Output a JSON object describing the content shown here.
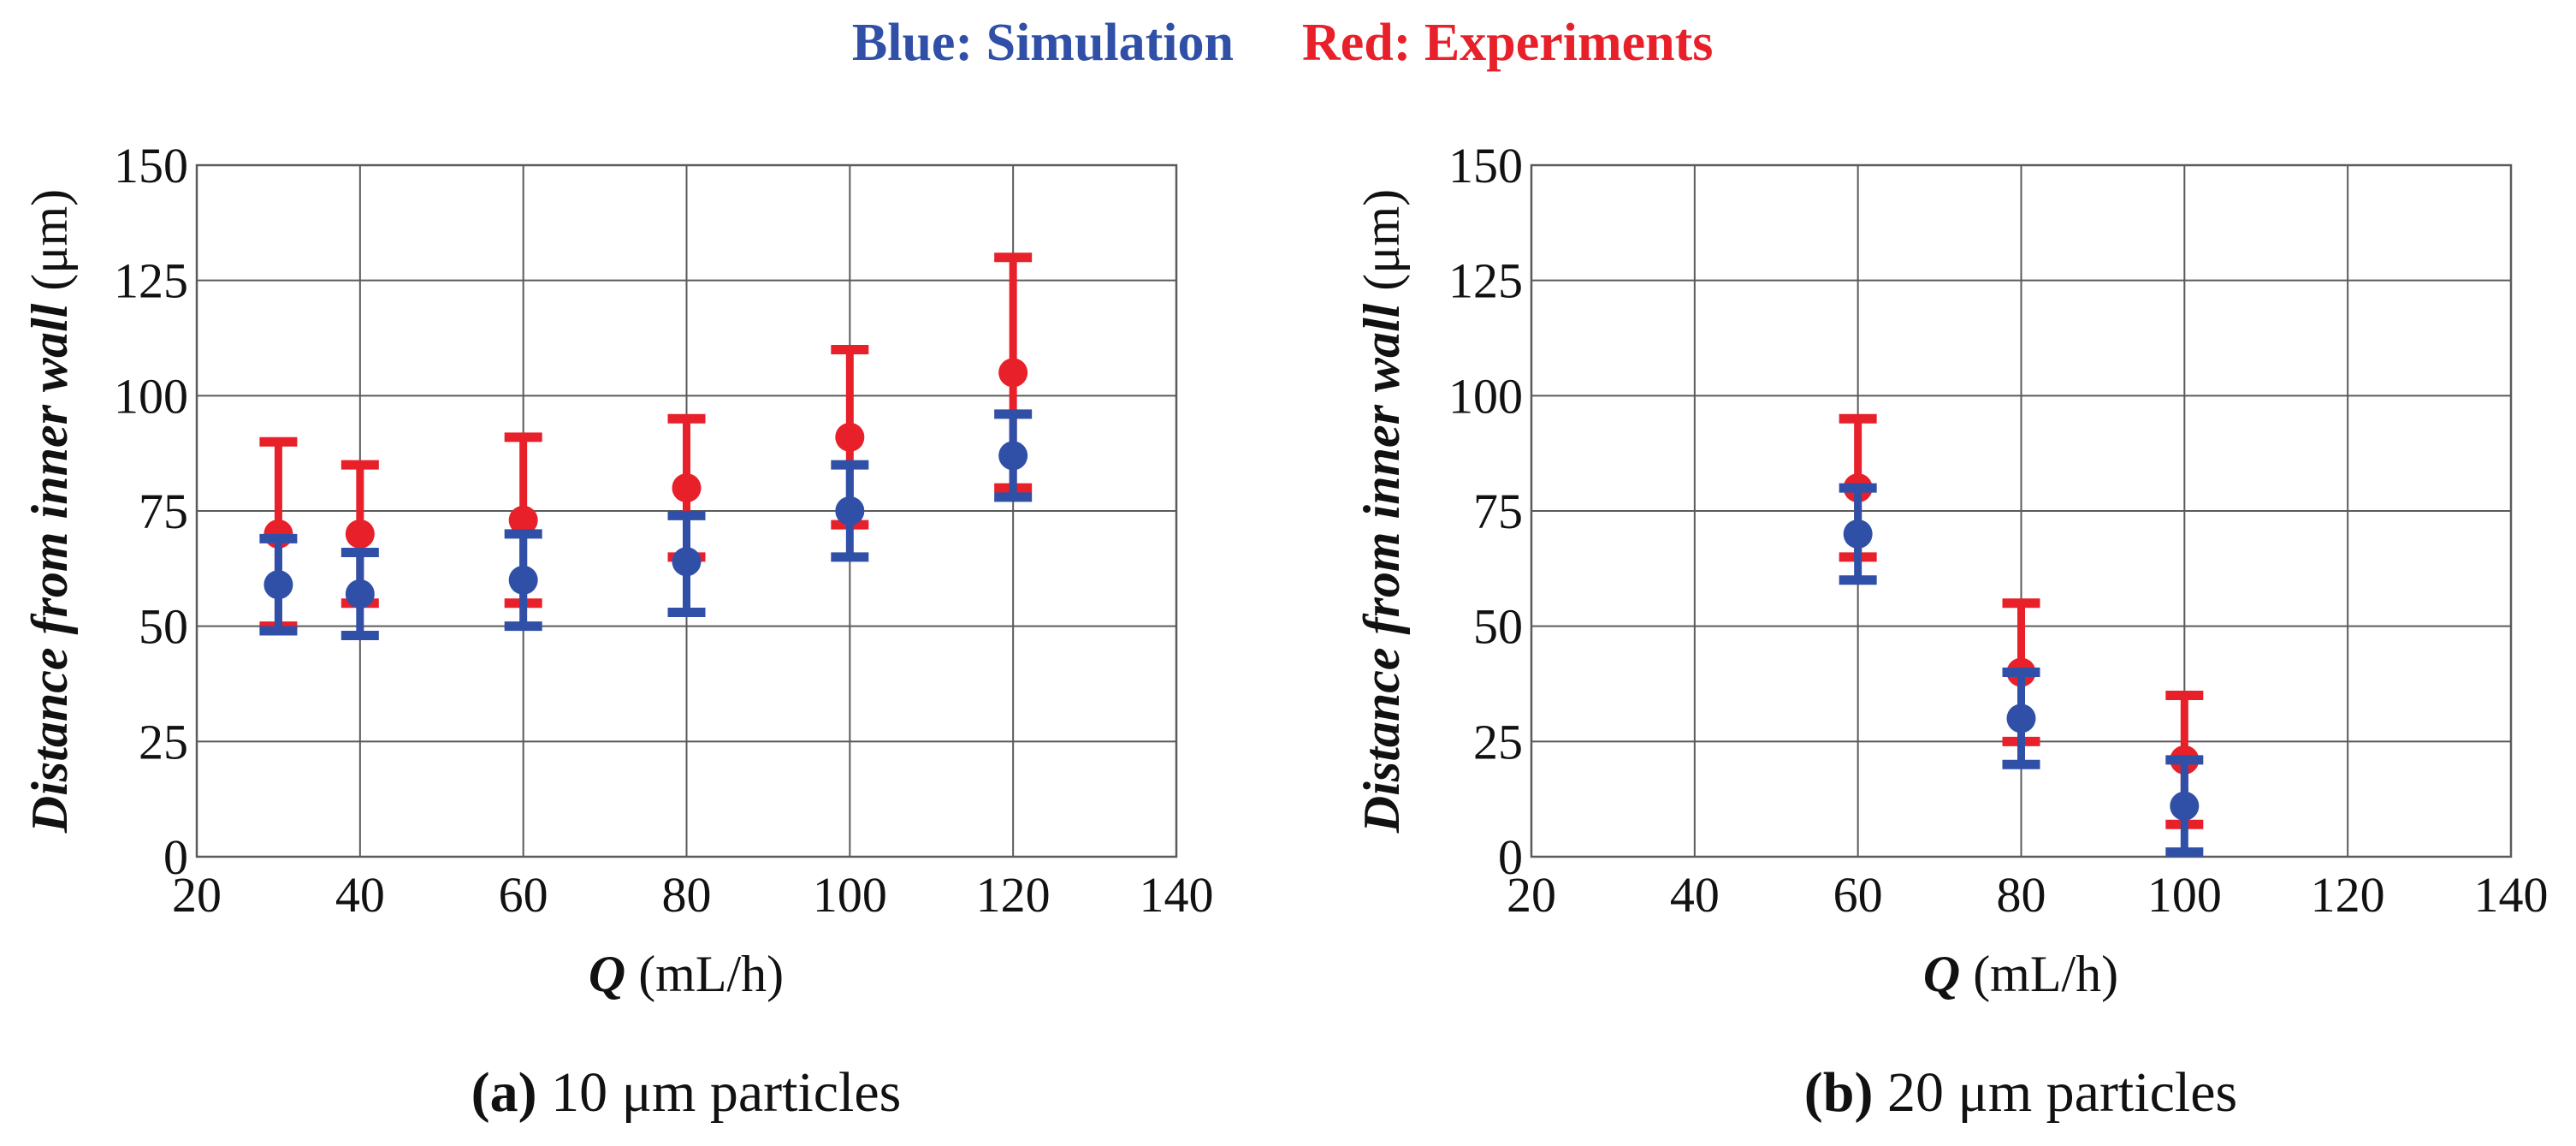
{
  "legend": {
    "simulation_label": "Blue: Simulation",
    "experiment_label": "Red: Experiments",
    "simulation_color": "#3050a8",
    "experiment_color": "#e8202a"
  },
  "chart_data": [
    {
      "type": "scatter",
      "panel_id": "a",
      "caption_prefix": "(a)",
      "caption_text": " 10 μm particles",
      "xlabel_var": "Q",
      "xlabel_unit": " (mL/h)",
      "ylabel_text": "Distance from inner wall",
      "ylabel_unit": " (μm)",
      "xlim": [
        20,
        140
      ],
      "ylim": [
        0,
        150
      ],
      "xticks": [
        20,
        40,
        60,
        80,
        100,
        120,
        140
      ],
      "yticks": [
        0,
        25,
        50,
        75,
        100,
        125,
        150
      ],
      "grid": true,
      "series": [
        {
          "name": "Experiments",
          "color": "#e8202a",
          "x": [
            30,
            40,
            60,
            80,
            100,
            120
          ],
          "y": [
            70,
            70,
            73,
            80,
            91,
            105
          ],
          "y_low": [
            50,
            55,
            55,
            65,
            72,
            80
          ],
          "y_high": [
            90,
            85,
            91,
            95,
            110,
            130
          ]
        },
        {
          "name": "Simulation",
          "color": "#3050a8",
          "x": [
            30,
            40,
            60,
            80,
            100,
            120
          ],
          "y": [
            59,
            57,
            60,
            64,
            75,
            87
          ],
          "y_low": [
            49,
            48,
            50,
            53,
            65,
            78
          ],
          "y_high": [
            69,
            66,
            70,
            74,
            85,
            96
          ]
        }
      ]
    },
    {
      "type": "scatter",
      "panel_id": "b",
      "caption_prefix": "(b)",
      "caption_text": " 20 μm particles",
      "xlabel_var": "Q",
      "xlabel_unit": " (mL/h)",
      "ylabel_text": "Distance from inner wall",
      "ylabel_unit": " (μm)",
      "xlim": [
        20,
        140
      ],
      "ylim": [
        0,
        150
      ],
      "xticks": [
        20,
        40,
        60,
        80,
        100,
        120,
        140
      ],
      "yticks": [
        0,
        25,
        50,
        75,
        100,
        125,
        150
      ],
      "grid": true,
      "series": [
        {
          "name": "Experiments",
          "color": "#e8202a",
          "x": [
            60,
            80,
            100
          ],
          "y": [
            80,
            40,
            21
          ],
          "y_low": [
            65,
            25,
            7
          ],
          "y_high": [
            95,
            55,
            35
          ]
        },
        {
          "name": "Simulation",
          "color": "#3050a8",
          "x": [
            60,
            80,
            100
          ],
          "y": [
            70,
            30,
            11
          ],
          "y_low": [
            60,
            20,
            1
          ],
          "y_high": [
            80,
            40,
            21
          ]
        }
      ]
    }
  ]
}
